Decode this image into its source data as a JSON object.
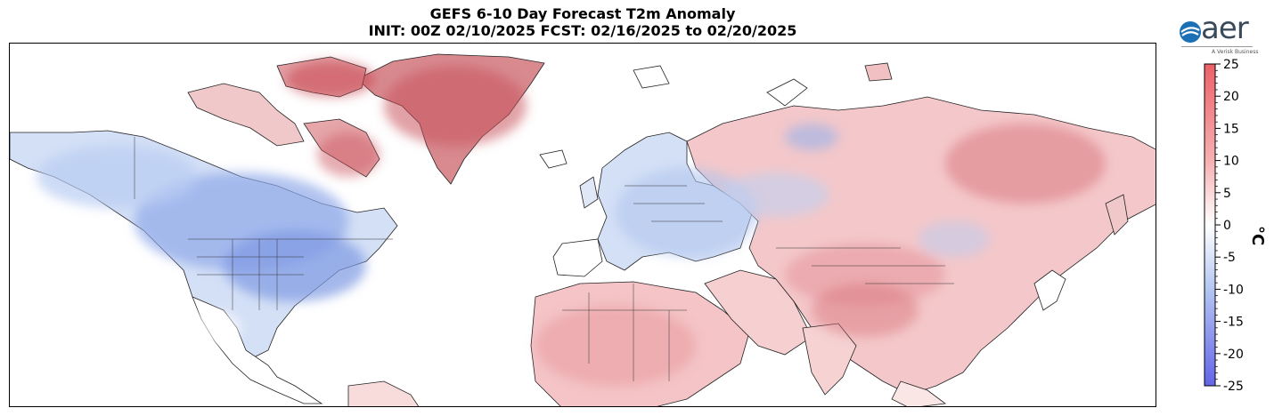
{
  "title_line1": "GEFS 6-10 Day Forecast T2m Anomaly",
  "title_line2": "INIT: 00Z 02/10/2025     FCST: 02/16/2025 to 02/20/2025",
  "logo": {
    "brand": "aer",
    "tagline": "A Verisk Business",
    "icon": "aer-swirl-icon"
  },
  "colorbar": {
    "unit": "°C",
    "range": [
      -25,
      25
    ],
    "ticks": [
      "25",
      "20",
      "15",
      "10",
      "5",
      "0",
      "-5",
      "-10",
      "-15",
      "-20",
      "-25"
    ],
    "colors": {
      "warm": "#e8626a",
      "neutral": "#ffffff",
      "cold": "#6a6ae6"
    }
  },
  "map": {
    "projection": "equirectangular",
    "extent": "North America – Europe – Asia",
    "colors": {
      "warm_strong": "#c83a45",
      "warm": "#f0b4b6",
      "warm_light": "#f8dcdc",
      "cold": "#a9c0ee",
      "cold_light": "#d4e0f6",
      "coast": "#222222"
    }
  }
}
